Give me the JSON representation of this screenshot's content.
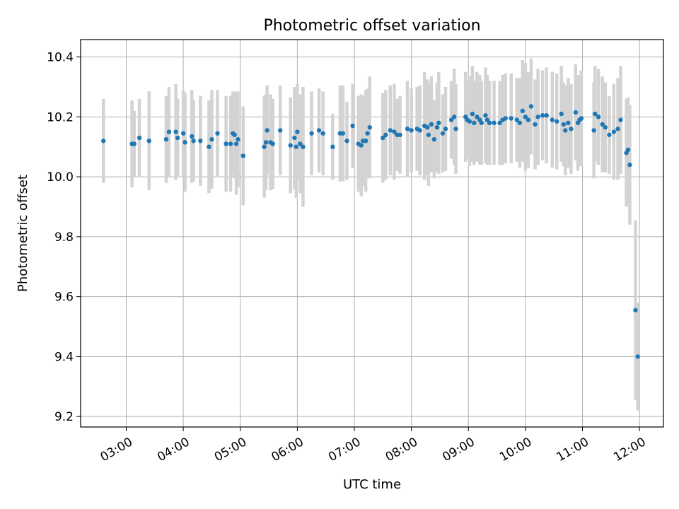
{
  "chart_data": {
    "type": "scatter",
    "title": "Photometric offset variation",
    "xlabel": "UTC time",
    "ylabel": "Photometric offset",
    "xlim": [
      2.2,
      12.42
    ],
    "ylim": [
      9.165,
      10.458
    ],
    "grid": true,
    "x_ticks": [
      3,
      4,
      5,
      6,
      7,
      8,
      9,
      10,
      11,
      12
    ],
    "x_tick_labels": [
      "03:00",
      "04:00",
      "05:00",
      "06:00",
      "07:00",
      "08:00",
      "09:00",
      "10:00",
      "11:00",
      "12:00"
    ],
    "y_ticks": [
      9.2,
      9.4,
      9.6,
      9.8,
      10.0,
      10.2,
      10.4
    ],
    "y_tick_labels": [
      "9.2",
      "9.4",
      "9.6",
      "9.8",
      "10.0",
      "10.2",
      "10.4"
    ],
    "colors": {
      "point": "#1f77b4",
      "errorbar": "#d3d3d3",
      "grid": "#b0b0b0"
    },
    "series": [
      {
        "name": "offset",
        "points": [
          {
            "x": 2.6,
            "y": 10.12,
            "err": 0.14
          },
          {
            "x": 3.1,
            "y": 10.11,
            "err": 0.145
          },
          {
            "x": 3.14,
            "y": 10.11,
            "err": 0.11
          },
          {
            "x": 3.23,
            "y": 10.13,
            "err": 0.13
          },
          {
            "x": 3.4,
            "y": 10.12,
            "err": 0.165
          },
          {
            "x": 3.7,
            "y": 10.125,
            "err": 0.145
          },
          {
            "x": 3.75,
            "y": 10.15,
            "err": 0.15
          },
          {
            "x": 3.87,
            "y": 10.15,
            "err": 0.16
          },
          {
            "x": 3.9,
            "y": 10.13,
            "err": 0.13
          },
          {
            "x": 4.0,
            "y": 10.145,
            "err": 0.145
          },
          {
            "x": 4.03,
            "y": 10.115,
            "err": 0.165
          },
          {
            "x": 4.15,
            "y": 10.135,
            "err": 0.155
          },
          {
            "x": 4.18,
            "y": 10.12,
            "err": 0.135
          },
          {
            "x": 4.3,
            "y": 10.12,
            "err": 0.15
          },
          {
            "x": 4.45,
            "y": 10.1,
            "err": 0.155
          },
          {
            "x": 4.5,
            "y": 10.125,
            "err": 0.165
          },
          {
            "x": 4.6,
            "y": 10.145,
            "err": 0.145
          },
          {
            "x": 4.75,
            "y": 10.11,
            "err": 0.16
          },
          {
            "x": 4.83,
            "y": 10.11,
            "err": 0.16
          },
          {
            "x": 4.87,
            "y": 10.145,
            "err": 0.14
          },
          {
            "x": 4.9,
            "y": 10.14,
            "err": 0.145
          },
          {
            "x": 4.93,
            "y": 10.11,
            "err": 0.17
          },
          {
            "x": 4.96,
            "y": 10.125,
            "err": 0.16
          },
          {
            "x": 5.05,
            "y": 10.07,
            "err": 0.165
          },
          {
            "x": 5.42,
            "y": 10.1,
            "err": 0.17
          },
          {
            "x": 5.45,
            "y": 10.115,
            "err": 0.16
          },
          {
            "x": 5.47,
            "y": 10.155,
            "err": 0.15
          },
          {
            "x": 5.53,
            "y": 10.115,
            "err": 0.16
          },
          {
            "x": 5.57,
            "y": 10.11,
            "err": 0.15
          },
          {
            "x": 5.7,
            "y": 10.155,
            "err": 0.15
          },
          {
            "x": 5.88,
            "y": 10.105,
            "err": 0.16
          },
          {
            "x": 5.95,
            "y": 10.13,
            "err": 0.17
          },
          {
            "x": 5.98,
            "y": 10.1,
            "err": 0.17
          },
          {
            "x": 6.0,
            "y": 10.15,
            "err": 0.16
          },
          {
            "x": 6.05,
            "y": 10.11,
            "err": 0.165
          },
          {
            "x": 6.1,
            "y": 10.1,
            "err": 0.2
          },
          {
            "x": 6.25,
            "y": 10.145,
            "err": 0.14
          },
          {
            "x": 6.38,
            "y": 10.155,
            "err": 0.14
          },
          {
            "x": 6.45,
            "y": 10.145,
            "err": 0.14
          },
          {
            "x": 6.62,
            "y": 10.1,
            "err": 0.11
          },
          {
            "x": 6.75,
            "y": 10.145,
            "err": 0.16
          },
          {
            "x": 6.8,
            "y": 10.145,
            "err": 0.16
          },
          {
            "x": 6.87,
            "y": 10.12,
            "err": 0.13
          },
          {
            "x": 6.97,
            "y": 10.17,
            "err": 0.14
          },
          {
            "x": 7.07,
            "y": 10.11,
            "err": 0.16
          },
          {
            "x": 7.12,
            "y": 10.105,
            "err": 0.17
          },
          {
            "x": 7.15,
            "y": 10.12,
            "err": 0.15
          },
          {
            "x": 7.2,
            "y": 10.12,
            "err": 0.17
          },
          {
            "x": 7.23,
            "y": 10.145,
            "err": 0.15
          },
          {
            "x": 7.27,
            "y": 10.165,
            "err": 0.17
          },
          {
            "x": 7.5,
            "y": 10.13,
            "err": 0.15
          },
          {
            "x": 7.55,
            "y": 10.14,
            "err": 0.15
          },
          {
            "x": 7.63,
            "y": 10.155,
            "err": 0.15
          },
          {
            "x": 7.7,
            "y": 10.15,
            "err": 0.16
          },
          {
            "x": 7.75,
            "y": 10.14,
            "err": 0.12
          },
          {
            "x": 7.8,
            "y": 10.14,
            "err": 0.13
          },
          {
            "x": 7.93,
            "y": 10.16,
            "err": 0.16
          },
          {
            "x": 8.0,
            "y": 10.155,
            "err": 0.14
          },
          {
            "x": 8.1,
            "y": 10.16,
            "err": 0.14
          },
          {
            "x": 8.15,
            "y": 10.155,
            "err": 0.15
          },
          {
            "x": 8.23,
            "y": 10.17,
            "err": 0.18
          },
          {
            "x": 8.28,
            "y": 10.165,
            "err": 0.16
          },
          {
            "x": 8.3,
            "y": 10.14,
            "err": 0.17
          },
          {
            "x": 8.35,
            "y": 10.175,
            "err": 0.16
          },
          {
            "x": 8.4,
            "y": 10.125,
            "err": 0.13
          },
          {
            "x": 8.45,
            "y": 10.165,
            "err": 0.15
          },
          {
            "x": 8.48,
            "y": 10.18,
            "err": 0.17
          },
          {
            "x": 8.55,
            "y": 10.145,
            "err": 0.13
          },
          {
            "x": 8.6,
            "y": 10.16,
            "err": 0.14
          },
          {
            "x": 8.7,
            "y": 10.19,
            "err": 0.13
          },
          {
            "x": 8.75,
            "y": 10.2,
            "err": 0.16
          },
          {
            "x": 8.78,
            "y": 10.16,
            "err": 0.15
          },
          {
            "x": 8.95,
            "y": 10.2,
            "err": 0.15
          },
          {
            "x": 8.98,
            "y": 10.19,
            "err": 0.13
          },
          {
            "x": 9.02,
            "y": 10.185,
            "err": 0.15
          },
          {
            "x": 9.07,
            "y": 10.21,
            "err": 0.16
          },
          {
            "x": 9.1,
            "y": 10.18,
            "err": 0.14
          },
          {
            "x": 9.15,
            "y": 10.2,
            "err": 0.15
          },
          {
            "x": 9.2,
            "y": 10.19,
            "err": 0.15
          },
          {
            "x": 9.23,
            "y": 10.18,
            "err": 0.14
          },
          {
            "x": 9.3,
            "y": 10.205,
            "err": 0.16
          },
          {
            "x": 9.33,
            "y": 10.19,
            "err": 0.15
          },
          {
            "x": 9.37,
            "y": 10.18,
            "err": 0.14
          },
          {
            "x": 9.45,
            "y": 10.18,
            "err": 0.14
          },
          {
            "x": 9.55,
            "y": 10.18,
            "err": 0.14
          },
          {
            "x": 9.6,
            "y": 10.19,
            "err": 0.15
          },
          {
            "x": 9.65,
            "y": 10.195,
            "err": 0.15
          },
          {
            "x": 9.75,
            "y": 10.195,
            "err": 0.15
          },
          {
            "x": 9.85,
            "y": 10.19,
            "err": 0.14
          },
          {
            "x": 9.9,
            "y": 10.18,
            "err": 0.15
          },
          {
            "x": 9.95,
            "y": 10.22,
            "err": 0.17
          },
          {
            "x": 10.0,
            "y": 10.2,
            "err": 0.18
          },
          {
            "x": 10.05,
            "y": 10.19,
            "err": 0.16
          },
          {
            "x": 10.1,
            "y": 10.235,
            "err": 0.16
          },
          {
            "x": 10.17,
            "y": 10.175,
            "err": 0.15
          },
          {
            "x": 10.22,
            "y": 10.2,
            "err": 0.16
          },
          {
            "x": 10.3,
            "y": 10.205,
            "err": 0.15
          },
          {
            "x": 10.37,
            "y": 10.205,
            "err": 0.16
          },
          {
            "x": 10.47,
            "y": 10.19,
            "err": 0.16
          },
          {
            "x": 10.55,
            "y": 10.185,
            "err": 0.16
          },
          {
            "x": 10.63,
            "y": 10.21,
            "err": 0.16
          },
          {
            "x": 10.67,
            "y": 10.175,
            "err": 0.14
          },
          {
            "x": 10.7,
            "y": 10.155,
            "err": 0.15
          },
          {
            "x": 10.75,
            "y": 10.18,
            "err": 0.15
          },
          {
            "x": 10.8,
            "y": 10.16,
            "err": 0.15
          },
          {
            "x": 10.88,
            "y": 10.215,
            "err": 0.16
          },
          {
            "x": 10.92,
            "y": 10.18,
            "err": 0.16
          },
          {
            "x": 10.95,
            "y": 10.19,
            "err": 0.15
          },
          {
            "x": 10.98,
            "y": 10.195,
            "err": 0.16
          },
          {
            "x": 11.2,
            "y": 10.155,
            "err": 0.16
          },
          {
            "x": 11.22,
            "y": 10.21,
            "err": 0.16
          },
          {
            "x": 11.28,
            "y": 10.2,
            "err": 0.16
          },
          {
            "x": 11.35,
            "y": 10.175,
            "err": 0.16
          },
          {
            "x": 11.4,
            "y": 10.165,
            "err": 0.15
          },
          {
            "x": 11.47,
            "y": 10.14,
            "err": 0.13
          },
          {
            "x": 11.55,
            "y": 10.15,
            "err": 0.16
          },
          {
            "x": 11.62,
            "y": 10.16,
            "err": 0.17
          },
          {
            "x": 11.67,
            "y": 10.19,
            "err": 0.18
          },
          {
            "x": 11.77,
            "y": 10.08,
            "err": 0.18
          },
          {
            "x": 11.8,
            "y": 10.09,
            "err": 0.175
          },
          {
            "x": 11.83,
            "y": 10.04,
            "err": 0.2
          },
          {
            "x": 11.93,
            "y": 9.555,
            "err": 0.3
          },
          {
            "x": 11.97,
            "y": 9.4,
            "err": 0.18
          }
        ]
      }
    ]
  }
}
